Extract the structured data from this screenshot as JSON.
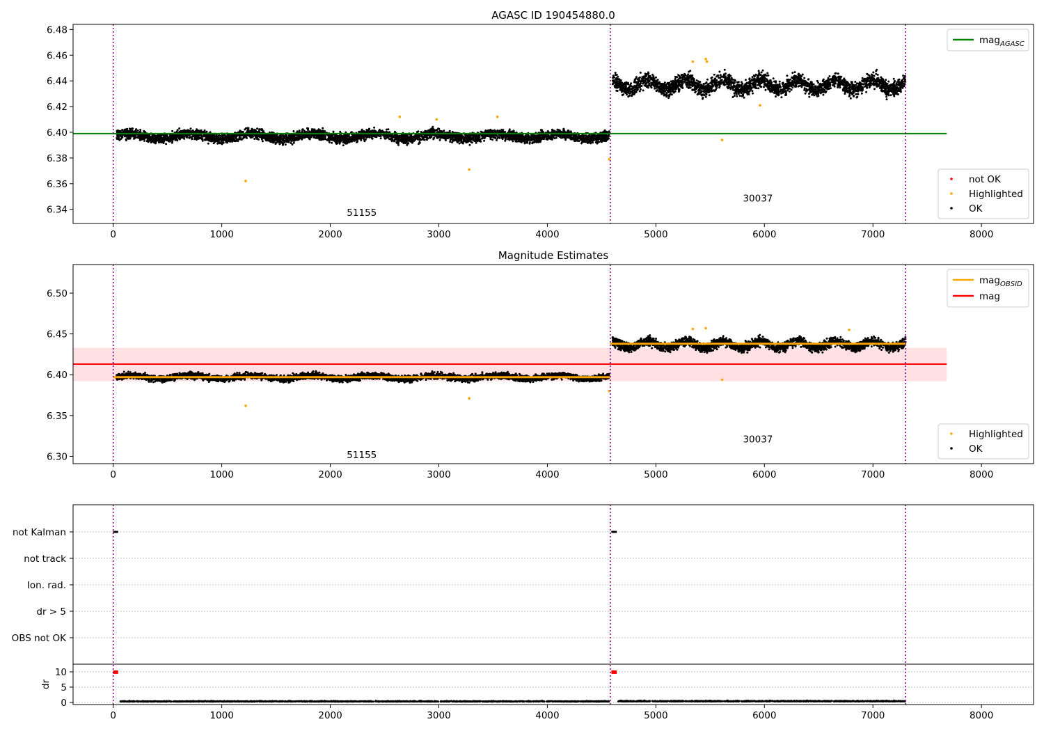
{
  "chart_data": [
    {
      "type": "scatter",
      "title": "AGASC ID 190454880.0",
      "xlim": [
        -370,
        8480
      ],
      "ylim": [
        6.329,
        6.484
      ],
      "xticks": [
        0,
        1000,
        2000,
        3000,
        4000,
        5000,
        6000,
        7000,
        8000
      ],
      "xtick_labels": [
        "0",
        "1000",
        "2000",
        "3000",
        "4000",
        "5000",
        "6000",
        "7000",
        "8000"
      ],
      "yticks": [
        6.34,
        6.36,
        6.38,
        6.4,
        6.42,
        6.44,
        6.46,
        6.48
      ],
      "ytick_labels": [
        "6.34",
        "6.36",
        "6.38",
        "6.40",
        "6.42",
        "6.44",
        "6.46",
        "6.48"
      ],
      "obsid_boundaries": [
        0,
        4580,
        7300
      ],
      "obsid_labels": [
        {
          "text": "51155",
          "x": 2290,
          "y": 6.335
        },
        {
          "text": "30037",
          "x": 5940,
          "y": 6.346
        }
      ],
      "ok_segments": [
        {
          "x_start": 30,
          "x_end": 4570,
          "center": 6.397,
          "spread": 0.006
        },
        {
          "x_start": 4600,
          "x_end": 7300,
          "center": 6.437,
          "spread": 0.009
        }
      ],
      "highlighted_points": [
        [
          1220,
          6.362
        ],
        [
          2640,
          6.412
        ],
        [
          2980,
          6.41
        ],
        [
          3280,
          6.371
        ],
        [
          3540,
          6.412
        ],
        [
          4570,
          6.379
        ],
        [
          5340,
          6.455
        ],
        [
          5460,
          6.457
        ],
        [
          5610,
          6.394
        ],
        [
          5470,
          6.455
        ],
        [
          5960,
          6.421
        ]
      ],
      "ref_lines": [
        {
          "name": "mag",
          "subscript": "AGASC",
          "y": 6.399,
          "x_start": -370,
          "x_end": 7680,
          "color": "#008000"
        }
      ],
      "legend_lines": [
        {
          "label": "mag",
          "subscript": "AGASC",
          "color": "#008000"
        }
      ],
      "legend_points": [
        {
          "label": "not OK",
          "color": "#ff0000"
        },
        {
          "label": "Highlighted",
          "color": "#ffa500"
        },
        {
          "label": "OK",
          "color": "#000000"
        }
      ]
    },
    {
      "type": "scatter",
      "title": "Magnitude Estimates",
      "xlim": [
        -370,
        8480
      ],
      "ylim": [
        6.291,
        6.535
      ],
      "xticks": [
        0,
        1000,
        2000,
        3000,
        4000,
        5000,
        6000,
        7000,
        8000
      ],
      "xtick_labels": [
        "0",
        "1000",
        "2000",
        "3000",
        "4000",
        "5000",
        "6000",
        "7000",
        "8000"
      ],
      "yticks": [
        6.3,
        6.35,
        6.4,
        6.45,
        6.5
      ],
      "ytick_labels": [
        "6.30",
        "6.35",
        "6.40",
        "6.45",
        "6.50"
      ],
      "obsid_boundaries": [
        0,
        4580,
        7300
      ],
      "obsid_labels": [
        {
          "text": "51155",
          "x": 2290,
          "y": 6.298
        },
        {
          "text": "30037",
          "x": 5940,
          "y": 6.317
        }
      ],
      "ok_segments": [
        {
          "x_start": 30,
          "x_end": 4570,
          "center": 6.397,
          "spread": 0.006
        },
        {
          "x_start": 4600,
          "x_end": 7300,
          "center": 6.437,
          "spread": 0.009
        }
      ],
      "highlighted_points": [
        [
          1220,
          6.362
        ],
        [
          3280,
          6.371
        ],
        [
          4570,
          6.38
        ],
        [
          5340,
          6.456
        ],
        [
          5460,
          6.457
        ],
        [
          5610,
          6.394
        ],
        [
          6780,
          6.455
        ]
      ],
      "band": {
        "y_low": 6.392,
        "y_high": 6.433,
        "x_start": -370,
        "x_end": 7680,
        "color": "#ffd6d9"
      },
      "ref_lines": [
        {
          "name": "mag",
          "subscript": "",
          "y": 6.413,
          "x_start": -370,
          "x_end": 7680,
          "color": "#ff0000"
        }
      ],
      "obsid_mags": [
        {
          "x_start": 0,
          "x_end": 4580,
          "y": 6.397
        },
        {
          "x_start": 4580,
          "x_end": 7300,
          "y": 6.438
        }
      ],
      "legend_lines": [
        {
          "label": "mag",
          "subscript": "OBSID",
          "color": "#ffa500"
        },
        {
          "label": "mag",
          "subscript": "",
          "color": "#ff0000"
        }
      ],
      "legend_points": [
        {
          "label": "Highlighted",
          "color": "#ffa500"
        },
        {
          "label": "OK",
          "color": "#000000"
        }
      ]
    },
    {
      "type": "scatter",
      "title": "",
      "xlim": [
        -370,
        8480
      ],
      "flag_rows": [
        "not Kalman",
        "not track",
        "Ion. rad.",
        "dr > 5",
        "OBS not OK"
      ],
      "flag_events": [
        {
          "row": "not Kalman",
          "x_start": 0,
          "x_end": 45
        },
        {
          "row": "not Kalman",
          "x_start": 4590,
          "x_end": 4640
        }
      ],
      "dr_ylabel": "dr",
      "dr_yticks": [
        0,
        5,
        10
      ],
      "dr_ytick_labels": [
        "0",
        "5",
        "10"
      ],
      "dr_ylim": [
        -0.7,
        12.5
      ],
      "dr_clipped": [
        {
          "x_start": 0,
          "x_end": 45,
          "y": 9.9
        },
        {
          "x_start": 4590,
          "x_end": 4640,
          "y": 9.9
        }
      ],
      "dr_segments": [
        {
          "x_start": 60,
          "x_end": 4570,
          "center": 0.25,
          "spread": 0.35
        },
        {
          "x_start": 4640,
          "x_end": 7300,
          "center": 0.3,
          "spread": 0.4
        }
      ],
      "obsid_boundaries": [
        0,
        4580,
        7300
      ],
      "xticks": [
        0,
        1000,
        2000,
        3000,
        4000,
        5000,
        6000,
        7000,
        8000
      ],
      "xtick_labels": [
        "0",
        "1000",
        "2000",
        "3000",
        "4000",
        "5000",
        "6000",
        "7000",
        "8000"
      ]
    }
  ]
}
